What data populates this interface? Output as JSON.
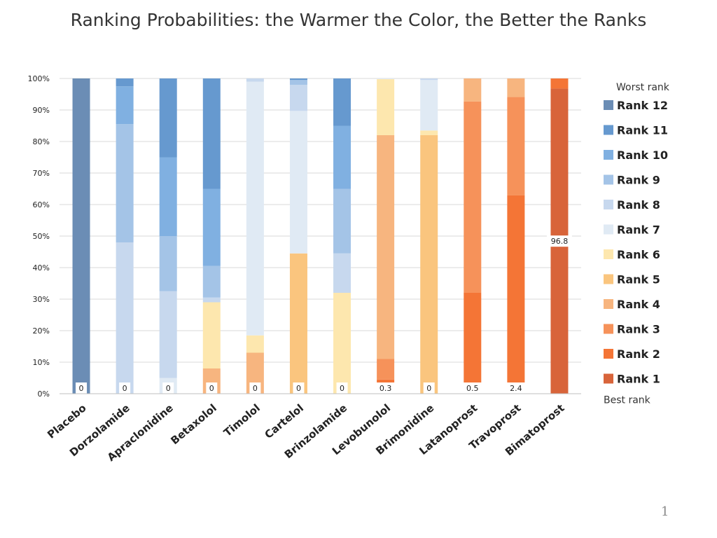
{
  "chart_data": {
    "type": "bar",
    "stacked": true,
    "title": "Ranking Probabilities: the Warmer the Color, the Better the Ranks",
    "ylim": [
      0,
      100
    ],
    "y_ticks": [
      "0%",
      "10%",
      "20%",
      "30%",
      "40%",
      "50%",
      "60%",
      "70%",
      "80%",
      "90%",
      "100%"
    ],
    "categories": [
      "Placebo",
      "Dorzolamide",
      "Apraclonidine",
      "Betaxolol",
      "Timolol",
      "Cartelol",
      "Brinzolamide",
      "Levobunolol",
      "Brimonidine",
      "Latanoprost",
      "Travoprost",
      "Bimatoprost"
    ],
    "legend_top": "Worst rank",
    "legend_bottom": "Best rank",
    "legend_order": [
      "Rank 12",
      "Rank 11",
      "Rank 10",
      "Rank 9",
      "Rank 8",
      "Rank 7",
      "Rank 6",
      "Rank 5",
      "Rank 4",
      "Rank 3",
      "Rank 2",
      "Rank 1"
    ],
    "series": [
      {
        "name": "Rank 1",
        "color": "#D8643A",
        "values": [
          0,
          0,
          0,
          0,
          0,
          0,
          0,
          0.3,
          0,
          0.5,
          2.4,
          96.8
        ]
      },
      {
        "name": "Rank 2",
        "color": "#F47536",
        "values": [
          0,
          0,
          0,
          0,
          0,
          0,
          0,
          4.2,
          0,
          31.5,
          60.5,
          3.2
        ]
      },
      {
        "name": "Rank 3",
        "color": "#F6925A",
        "values": [
          0,
          0,
          0,
          0,
          0,
          0,
          0,
          6.5,
          0,
          60.7,
          31.2,
          0
        ]
      },
      {
        "name": "Rank 4",
        "color": "#F7B57F",
        "values": [
          0,
          0,
          0,
          8,
          13,
          0,
          0,
          71,
          0,
          7.3,
          5.9,
          0
        ]
      },
      {
        "name": "Rank 5",
        "color": "#FAC57E",
        "values": [
          0,
          0,
          0,
          0,
          0,
          44.5,
          0,
          0,
          82,
          0,
          0,
          0
        ]
      },
      {
        "name": "Rank 6",
        "color": "#FDE7AE",
        "values": [
          0,
          0,
          0,
          21,
          5.5,
          0,
          32,
          17.8,
          1.5,
          0,
          0,
          0
        ]
      },
      {
        "name": "Rank 7",
        "color": "#E0EAF4",
        "values": [
          0,
          0,
          5,
          0,
          80.5,
          45.2,
          0,
          0.2,
          16,
          0,
          0,
          0
        ]
      },
      {
        "name": "Rank 8",
        "color": "#C7D8EE",
        "values": [
          0,
          48,
          27.5,
          1.5,
          1,
          8.3,
          12.5,
          0,
          0.5,
          0,
          0,
          0
        ]
      },
      {
        "name": "Rank 9",
        "color": "#A4C4E7",
        "values": [
          0,
          37.5,
          17.5,
          10,
          0,
          1.5,
          20.5,
          0,
          0,
          0,
          0,
          0
        ]
      },
      {
        "name": "Rank 10",
        "color": "#80B0E1",
        "values": [
          0,
          12,
          25,
          24.5,
          0,
          0,
          20,
          0,
          0,
          0,
          0,
          0
        ]
      },
      {
        "name": "Rank 11",
        "color": "#6699CF",
        "values": [
          0,
          2.5,
          25,
          35,
          0,
          0.5,
          15,
          0,
          0,
          0,
          0,
          0
        ]
      },
      {
        "name": "Rank 12",
        "color": "#6B8DB5",
        "values": [
          100,
          0,
          0,
          0,
          0,
          0,
          0,
          0,
          0,
          0,
          0,
          0
        ]
      }
    ],
    "rank1_labels": [
      "0",
      "0",
      "0",
      "0",
      "0",
      "0",
      "0",
      "0.3",
      "0",
      "0.5",
      "2.4",
      "96.8"
    ]
  },
  "page_number": "1"
}
